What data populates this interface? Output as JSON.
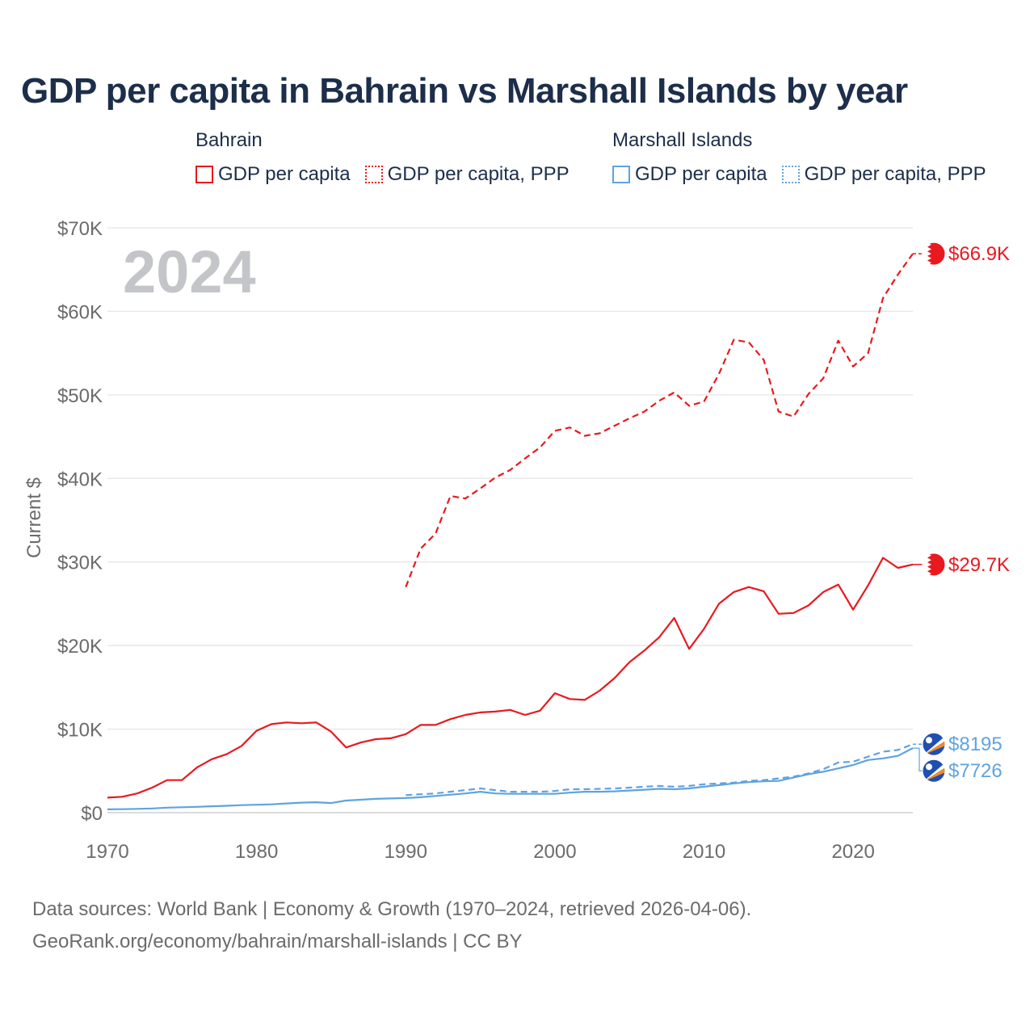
{
  "title": "GDP per capita in Bahrain vs Marshall Islands by year",
  "legend": {
    "groups": [
      {
        "country": "Bahrain",
        "color": "#e8191f",
        "items": [
          {
            "label": "GDP per capita",
            "style": "solid"
          },
          {
            "label": "GDP per capita, PPP",
            "style": "dotted"
          }
        ]
      },
      {
        "country": "Marshall Islands",
        "color": "#5fa3e0",
        "items": [
          {
            "label": "GDP per capita",
            "style": "solid"
          },
          {
            "label": "GDP per capita, PPP",
            "style": "dotted"
          }
        ]
      }
    ]
  },
  "footer": {
    "line1": "Data sources: World Bank | Economy & Growth (1970–2024, retrieved 2026-04-06).",
    "line2": "GeoRank.org/economy/bahrain/marshall-islands | CC BY"
  },
  "chart_data": {
    "type": "line",
    "year_label": "2024",
    "ylabel": "Current $",
    "xlim": [
      1970,
      2024
    ],
    "ylim": [
      0,
      70000
    ],
    "x_ticks": [
      1970,
      1980,
      1990,
      2000,
      2010,
      2020
    ],
    "y_ticks": [
      {
        "value": 0,
        "label": "$0"
      },
      {
        "value": 10000,
        "label": "$10K"
      },
      {
        "value": 20000,
        "label": "$20K"
      },
      {
        "value": 30000,
        "label": "$30K"
      },
      {
        "value": 40000,
        "label": "$40K"
      },
      {
        "value": 50000,
        "label": "$50K"
      },
      {
        "value": 60000,
        "label": "$60K"
      },
      {
        "value": 70000,
        "label": "$70K"
      }
    ],
    "series": [
      {
        "name": "Bahrain GDP per capita",
        "color": "#e8191f",
        "dash": "solid",
        "end_label": "$29.7K",
        "flag": "bahrain",
        "x": [
          1970,
          1971,
          1972,
          1973,
          1974,
          1975,
          1976,
          1977,
          1978,
          1979,
          1980,
          1981,
          1982,
          1983,
          1984,
          1985,
          1986,
          1987,
          1988,
          1989,
          1990,
          1991,
          1992,
          1993,
          1994,
          1995,
          1996,
          1997,
          1998,
          1999,
          2000,
          2001,
          2002,
          2003,
          2004,
          2005,
          2006,
          2007,
          2008,
          2009,
          2010,
          2011,
          2012,
          2013,
          2014,
          2015,
          2016,
          2017,
          2018,
          2019,
          2020,
          2021,
          2022,
          2023,
          2024
        ],
        "values": [
          1800,
          1900,
          2300,
          3000,
          3900,
          3900,
          5400,
          6400,
          7000,
          8000,
          9800,
          10600,
          10800,
          10700,
          10800,
          9700,
          7800,
          8400,
          8800,
          8900,
          9400,
          10500,
          10500,
          11200,
          11700,
          12000,
          12100,
          12300,
          11700,
          12200,
          14300,
          13600,
          13500,
          14600,
          16100,
          18000,
          19400,
          21000,
          23300,
          19600,
          22000,
          25000,
          26400,
          27000,
          26500,
          23800,
          23900,
          24800,
          26400,
          27300,
          24300,
          27200,
          30500,
          29300,
          29700
        ]
      },
      {
        "name": "Bahrain GDP per capita, PPP",
        "color": "#e8191f",
        "dash": "dashed",
        "end_label": "$66.9K",
        "flag": "bahrain",
        "x": [
          1990,
          1991,
          1992,
          1993,
          1994,
          1995,
          1996,
          1997,
          1998,
          1999,
          2000,
          2001,
          2002,
          2003,
          2004,
          2005,
          2006,
          2007,
          2008,
          2009,
          2010,
          2011,
          2012,
          2013,
          2014,
          2015,
          2016,
          2017,
          2018,
          2019,
          2020,
          2021,
          2022,
          2023,
          2024
        ],
        "values": [
          27000,
          31600,
          33400,
          37900,
          37600,
          38800,
          40100,
          41000,
          42400,
          43700,
          45700,
          46100,
          45100,
          45400,
          46300,
          47200,
          48000,
          49300,
          50300,
          48700,
          49200,
          52500,
          56600,
          56300,
          54200,
          48000,
          47400,
          50100,
          52000,
          56500,
          53400,
          55000,
          61600,
          64400,
          66900
        ]
      },
      {
        "name": "Marshall Islands GDP per capita",
        "color": "#5fa3e0",
        "dash": "solid",
        "end_label": "$7726",
        "flag": "marshall",
        "x": [
          1970,
          1971,
          1972,
          1973,
          1974,
          1975,
          1976,
          1977,
          1978,
          1979,
          1980,
          1981,
          1982,
          1983,
          1984,
          1985,
          1986,
          1987,
          1988,
          1989,
          1990,
          1991,
          1992,
          1993,
          1994,
          1995,
          1996,
          1997,
          1998,
          1999,
          2000,
          2001,
          2002,
          2003,
          2004,
          2005,
          2006,
          2007,
          2008,
          2009,
          2010,
          2011,
          2012,
          2013,
          2014,
          2015,
          2016,
          2017,
          2018,
          2019,
          2020,
          2021,
          2022,
          2023,
          2024
        ],
        "values": [
          400,
          420,
          450,
          500,
          600,
          650,
          700,
          760,
          820,
          900,
          950,
          1000,
          1100,
          1200,
          1250,
          1150,
          1450,
          1550,
          1650,
          1700,
          1750,
          1850,
          2000,
          2150,
          2300,
          2500,
          2300,
          2250,
          2250,
          2250,
          2250,
          2400,
          2500,
          2500,
          2550,
          2650,
          2750,
          2850,
          2800,
          2900,
          3100,
          3300,
          3500,
          3650,
          3750,
          3800,
          4200,
          4600,
          4900,
          5300,
          5700,
          6300,
          6500,
          6800,
          7726
        ]
      },
      {
        "name": "Marshall Islands GDP per capita, PPP",
        "color": "#5fa3e0",
        "dash": "dashed",
        "end_label": "$8195",
        "flag": "marshall",
        "x": [
          1990,
          1991,
          1992,
          1993,
          1994,
          1995,
          1996,
          1997,
          1998,
          1999,
          2000,
          2001,
          2002,
          2003,
          2004,
          2005,
          2006,
          2007,
          2008,
          2009,
          2010,
          2011,
          2012,
          2013,
          2014,
          2015,
          2016,
          2017,
          2018,
          2019,
          2020,
          2021,
          2022,
          2023,
          2024
        ],
        "values": [
          2100,
          2200,
          2300,
          2500,
          2700,
          2900,
          2700,
          2500,
          2500,
          2500,
          2600,
          2800,
          2800,
          2850,
          2900,
          3000,
          3100,
          3200,
          3100,
          3200,
          3400,
          3500,
          3600,
          3800,
          3900,
          4100,
          4300,
          4700,
          5200,
          6000,
          6100,
          6700,
          7300,
          7500,
          8195
        ]
      }
    ]
  }
}
